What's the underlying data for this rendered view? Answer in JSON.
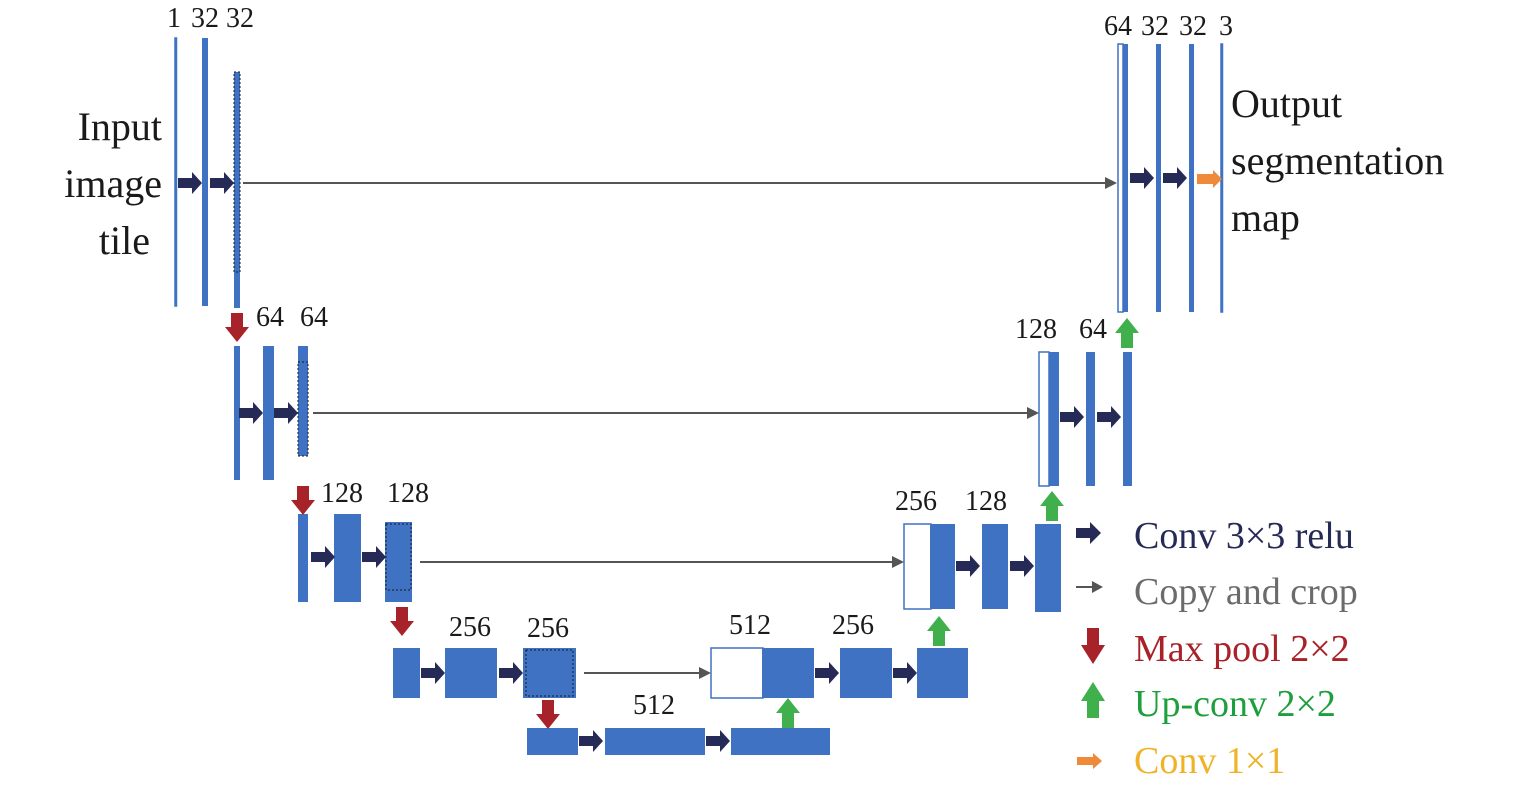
{
  "side_labels": {
    "input": [
      "Input",
      "image",
      "tile"
    ],
    "output": [
      "Output",
      "segmentation",
      "map"
    ]
  },
  "channels": {
    "l1_enc": [
      "1",
      "32",
      "32"
    ],
    "l2_enc": [
      "64",
      "64"
    ],
    "l3_enc": [
      "128",
      "128"
    ],
    "l4_enc": [
      "256",
      "256"
    ],
    "bottleneck": [
      "512"
    ],
    "l4_dec": [
      "512",
      "256"
    ],
    "l3_dec": [
      "256",
      "128"
    ],
    "l2_dec": [
      "128",
      "64"
    ],
    "l1_dec": [
      "64",
      "32",
      "32",
      "3"
    ]
  },
  "legend": [
    {
      "label": "Conv 3×3 relu",
      "color": "#262a56",
      "icon": "conv-arrow-icon"
    },
    {
      "label": "Copy and crop",
      "color": "#6b6b6b",
      "icon": "copy-arrow-icon"
    },
    {
      "label": "Max pool 2×2",
      "color": "#a72329",
      "icon": "maxpool-arrow-icon"
    },
    {
      "label": "Up-conv 2×2",
      "color": "#1d9f3d",
      "icon": "upconv-arrow-icon"
    },
    {
      "label": "Conv 1×1",
      "color": "#f0b328",
      "icon": "conv1x1-arrow-icon"
    }
  ],
  "colors": {
    "feature_map": "#3f72c2",
    "conv_arrow": "#262a56",
    "copy_arrow": "#555555",
    "maxpool_arrow": "#a72329",
    "upconv_arrow": "#3fb04b",
    "conv1x1_arrow": "#ef8a3a"
  }
}
